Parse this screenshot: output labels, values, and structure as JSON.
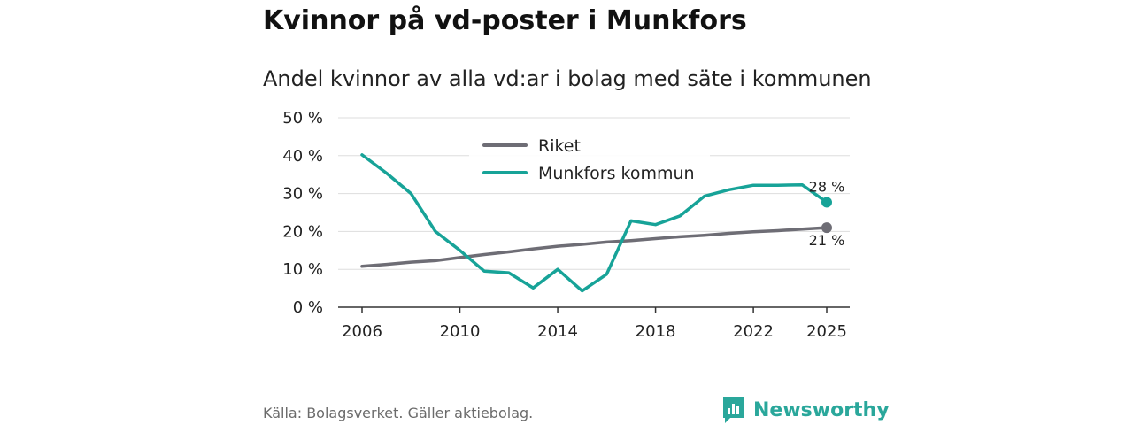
{
  "header": {
    "title": "Kvinnor på vd-poster i Munkfors",
    "subtitle": "Andel kvinnor av alla vd:ar i bolag med säte i kommunen"
  },
  "footer": {
    "source": "Källa: Bolagsverket. Gäller aktiebolag.",
    "brand": "Newsworthy",
    "brand_icon": "newsworthy-logo-icon"
  },
  "colors": {
    "riket": "#6e6d75",
    "munkfors": "#17a398",
    "grid": "#dddddd",
    "axis": "#333333",
    "brand": "#2aa79b"
  },
  "chart_data": {
    "type": "line",
    "title": "Andel kvinnor av alla vd:ar i bolag med säte i kommunen",
    "xlabel": "",
    "ylabel": "",
    "xlim": [
      2006,
      2025
    ],
    "ylim": [
      0,
      50
    ],
    "xticks": [
      2006,
      2010,
      2014,
      2018,
      2022,
      2025
    ],
    "yticks": [
      0,
      10,
      20,
      30,
      40,
      50
    ],
    "ytick_labels": [
      "0 %",
      "10 %",
      "20 %",
      "30 %",
      "40 %",
      "50 %"
    ],
    "grid": true,
    "legend_position": "top-center",
    "x": [
      2006,
      2007,
      2008,
      2009,
      2010,
      2011,
      2012,
      2013,
      2014,
      2015,
      2016,
      2017,
      2018,
      2019,
      2020,
      2021,
      2022,
      2023,
      2024,
      2025
    ],
    "series": [
      {
        "name": "Riket",
        "values": [
          10.8,
          11.3,
          11.9,
          12.3,
          13.1,
          13.9,
          14.6,
          15.4,
          16.1,
          16.6,
          17.2,
          17.6,
          18.1,
          18.6,
          19.0,
          19.5,
          19.9,
          20.2,
          20.6,
          21.0
        ],
        "end_label": "21 %"
      },
      {
        "name": "Munkfors kommun",
        "values": [
          40.2,
          35.4,
          30.0,
          20.0,
          15.0,
          9.5,
          9.1,
          5.1,
          10.0,
          4.3,
          8.7,
          22.8,
          21.8,
          24.1,
          29.3,
          31.0,
          32.2,
          32.2,
          32.3,
          27.7
        ],
        "end_label": "28 %"
      }
    ]
  }
}
